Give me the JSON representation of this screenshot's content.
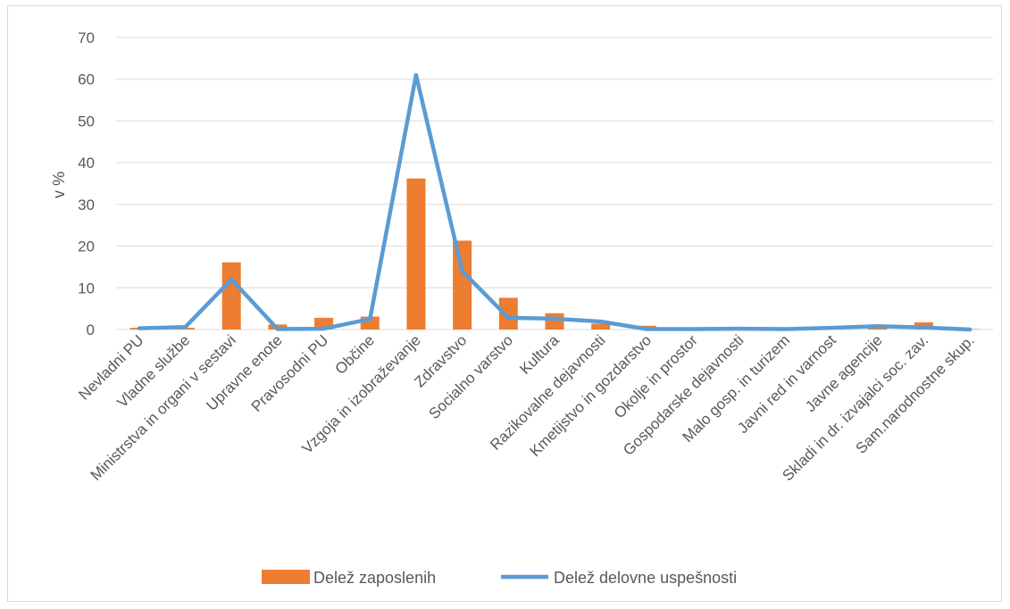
{
  "chart_data": {
    "type": "bar",
    "title": "",
    "xlabel": "",
    "ylabel": "v %",
    "ylim": [
      0,
      70
    ],
    "yticks": [
      0,
      10,
      20,
      30,
      40,
      50,
      60,
      70
    ],
    "grid": true,
    "legend_position": "bottom",
    "categories": [
      "Nevladni PU",
      "Vladne službe",
      "Ministrstva in organi v sestavi",
      "Upravne enote",
      "Pravosodni PU",
      "Občine",
      "Vzgoja in izobraževanje",
      "Zdravstvo",
      "Socialno varstvo",
      "Kultura",
      "Razikovalne dejavnosti",
      "Kmetijstvo in gozdarstvo",
      "Okolje in prostor",
      "Gospodarske dejavnosti",
      "Malo gosp. in turizem",
      "Javni red in varnost",
      "Javne agencije",
      "Skladi in dr. izvajalci soc. zav.",
      "Sam.narodnostne skup."
    ],
    "series": [
      {
        "name": "Delež zaposlenih",
        "kind": "bar",
        "color": "#ed7d31",
        "values": [
          0.4,
          0.4,
          16.1,
          1.2,
          2.8,
          3.1,
          36.2,
          21.3,
          7.6,
          3.9,
          1.4,
          0.9,
          0.3,
          0.3,
          0.2,
          0.5,
          0.6,
          1.7,
          0.1
        ]
      },
      {
        "name": "Delež delovne uspešnosti",
        "kind": "line",
        "color": "#5b9bd5",
        "values": [
          0.3,
          0.6,
          12.0,
          0.1,
          0.2,
          2.5,
          61.0,
          14.0,
          2.8,
          2.6,
          1.9,
          0.1,
          0.1,
          0.2,
          0.1,
          0.4,
          0.8,
          0.5,
          0.0
        ]
      }
    ]
  }
}
